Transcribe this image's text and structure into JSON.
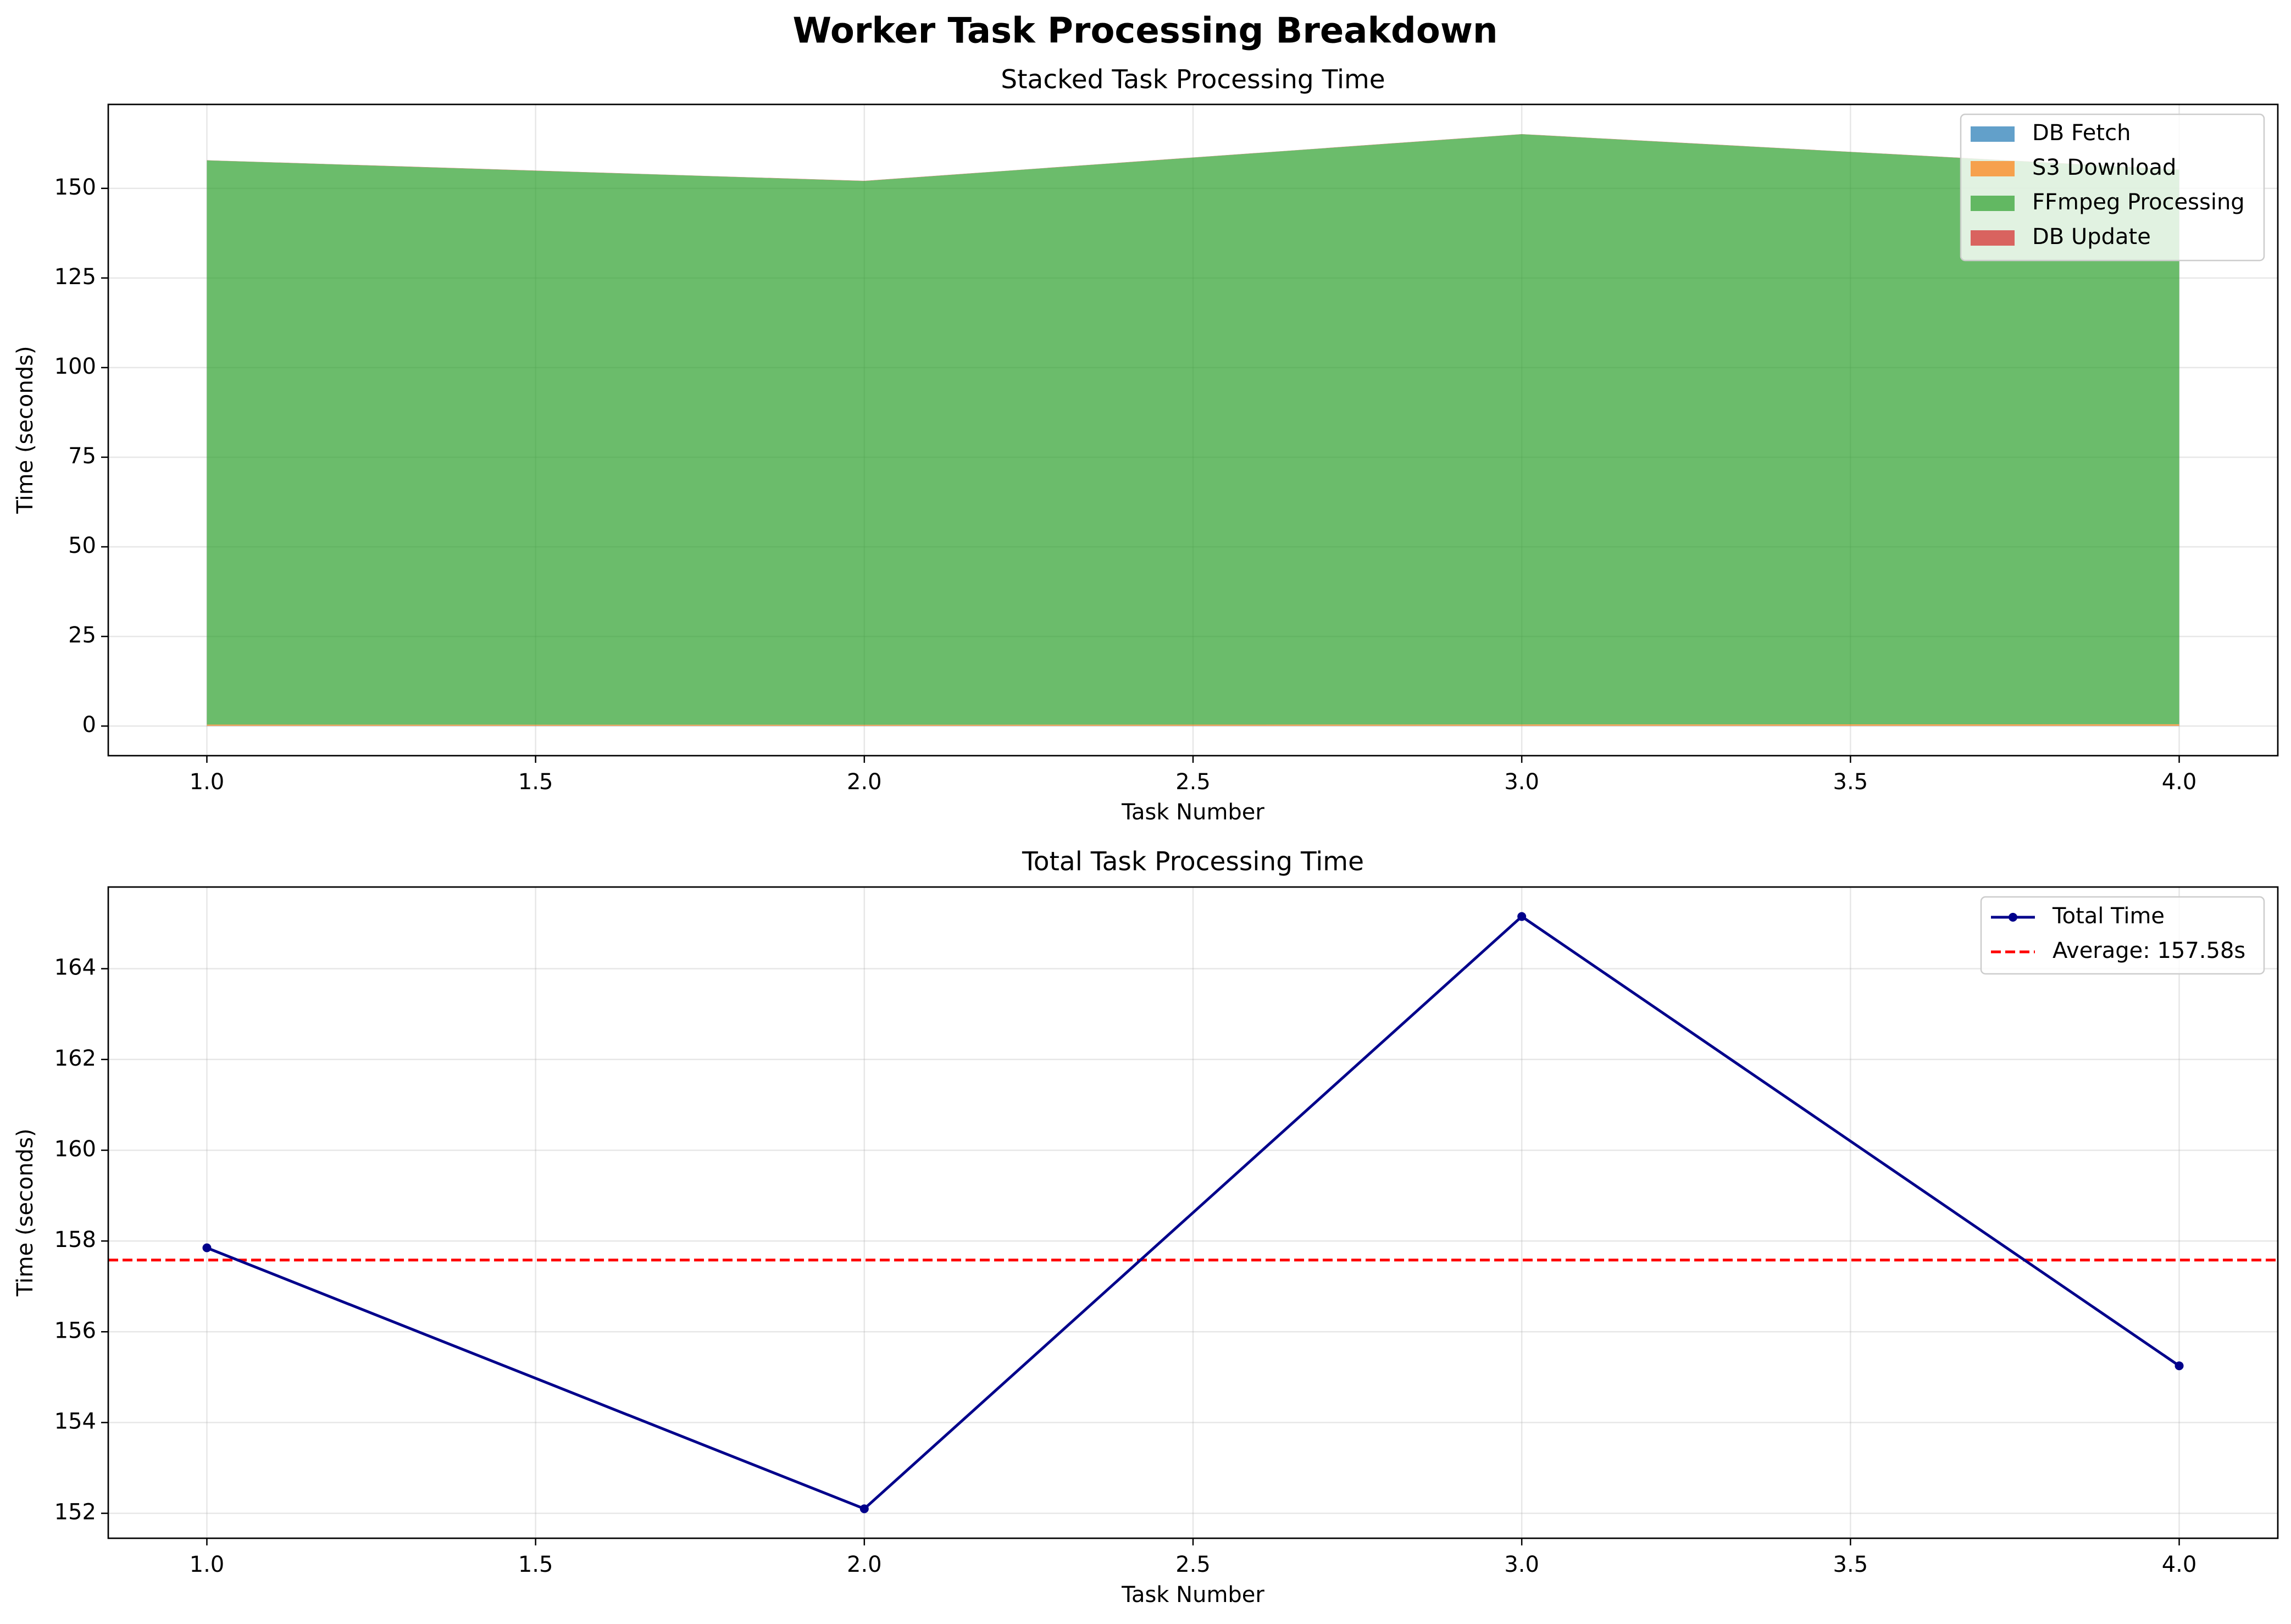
{
  "suptitle": "Worker Task Processing Breakdown",
  "chart_data": [
    {
      "type": "area",
      "stacked": true,
      "title": "Stacked Task Processing Time",
      "xlabel": "Task Number",
      "ylabel": "Time (seconds)",
      "x": [
        1.0,
        2.0,
        3.0,
        4.0
      ],
      "xticks": [
        "1.0",
        "1.5",
        "2.0",
        "2.5",
        "3.0",
        "3.5",
        "4.0"
      ],
      "yticks": [
        "0",
        "25",
        "50",
        "75",
        "100",
        "125",
        "150"
      ],
      "xlim": [
        0.85,
        4.15
      ],
      "ylim": [
        -8.26,
        173.42
      ],
      "grid": true,
      "legend_position": "top-right",
      "series": [
        {
          "name": "DB Fetch",
          "color": "#1f77b4",
          "values": [
            0.05,
            0.05,
            0.05,
            0.05
          ]
        },
        {
          "name": "S3 Download",
          "color": "#ff7f0e",
          "values": [
            0.35,
            0.3,
            0.4,
            0.45
          ]
        },
        {
          "name": "FFmpeg Processing",
          "color": "#2ca02c",
          "values": [
            157.4,
            151.7,
            164.65,
            154.7
          ]
        },
        {
          "name": "DB Update",
          "color": "#d62728",
          "values": [
            0.05,
            0.05,
            0.05,
            0.05
          ]
        }
      ]
    },
    {
      "type": "line",
      "title": "Total Task Processing Time",
      "xlabel": "Task Number",
      "ylabel": "Time (seconds)",
      "x": [
        1.0,
        2.0,
        3.0,
        4.0
      ],
      "xticks": [
        "1.0",
        "1.5",
        "2.0",
        "2.5",
        "3.0",
        "3.5",
        "4.0"
      ],
      "yticks": [
        "152",
        "154",
        "156",
        "158",
        "160",
        "162",
        "164"
      ],
      "xlim": [
        0.85,
        4.15
      ],
      "ylim": [
        151.45,
        165.8
      ],
      "grid": true,
      "legend_position": "top-right",
      "series": [
        {
          "name": "Total Time",
          "color": "#00008b",
          "values": [
            157.85,
            152.1,
            165.15,
            155.25
          ]
        }
      ],
      "reference_lines": [
        {
          "name": "Average: 157.58s",
          "y": 157.58,
          "color": "#ff0000",
          "style": "dashed"
        }
      ]
    }
  ]
}
